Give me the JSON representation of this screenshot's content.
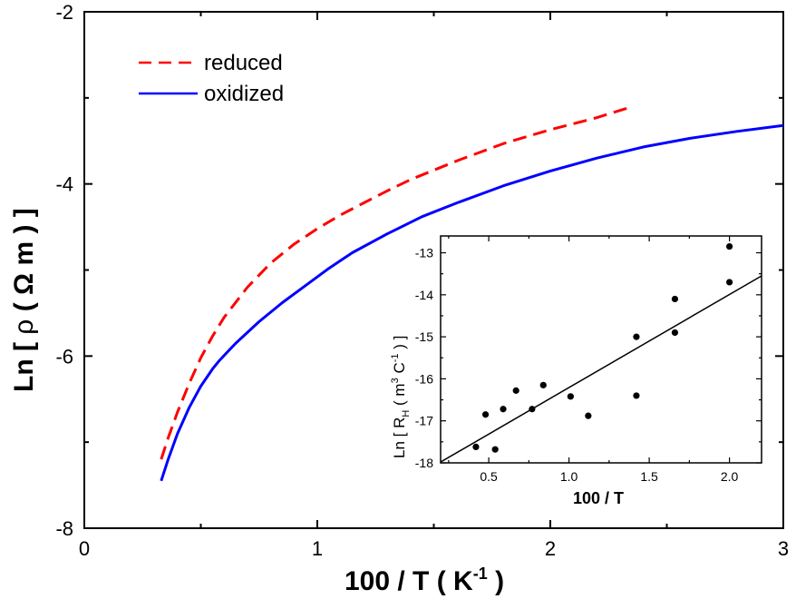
{
  "chart_data": [
    {
      "type": "line",
      "xlabel": "100 / T ( K",
      "xlabel_sup": "-1",
      "xlabel_end": " )",
      "ylabel_a": "Ln [ ",
      "ylabel_rho": "ρ",
      "ylabel_b": " ( Ω m ) ]",
      "xlim": [
        0,
        3
      ],
      "ylim": [
        -8,
        -2
      ],
      "xticks": [
        0,
        1,
        2,
        3
      ],
      "yticks": [
        -8,
        -6,
        -4,
        -2
      ],
      "xtick_labels": [
        "0",
        "1",
        "2",
        "3"
      ],
      "ytick_labels": [
        "-8",
        "-6",
        "-4",
        "-2"
      ],
      "legend_position": "top-left",
      "series": [
        {
          "name": "reduced",
          "color": "#ff0000",
          "style": "dashed",
          "x": [
            0.33,
            0.36,
            0.4,
            0.45,
            0.5,
            0.55,
            0.6,
            0.7,
            0.8,
            0.9,
            1.0,
            1.1,
            1.2,
            1.3,
            1.4,
            1.5,
            1.6,
            1.7,
            1.8,
            1.9,
            2.0,
            2.1,
            2.2,
            2.33
          ],
          "y": [
            -7.2,
            -6.95,
            -6.65,
            -6.32,
            -6.02,
            -5.77,
            -5.55,
            -5.2,
            -4.92,
            -4.7,
            -4.52,
            -4.36,
            -4.22,
            -4.08,
            -3.95,
            -3.84,
            -3.73,
            -3.63,
            -3.53,
            -3.45,
            -3.37,
            -3.3,
            -3.23,
            -3.12
          ]
        },
        {
          "name": "oxidized",
          "color": "#0000ff",
          "style": "solid",
          "x": [
            0.33,
            0.36,
            0.4,
            0.45,
            0.5,
            0.55,
            0.58,
            0.65,
            0.75,
            0.85,
            0.95,
            1.05,
            1.15,
            1.3,
            1.45,
            1.6,
            1.8,
            2.0,
            2.2,
            2.4,
            2.6,
            2.8,
            3.0
          ],
          "y": [
            -7.45,
            -7.2,
            -6.9,
            -6.6,
            -6.35,
            -6.15,
            -6.05,
            -5.85,
            -5.6,
            -5.38,
            -5.18,
            -4.98,
            -4.8,
            -4.58,
            -4.38,
            -4.22,
            -4.02,
            -3.85,
            -3.7,
            -3.57,
            -3.47,
            -3.39,
            -3.32
          ]
        }
      ]
    },
    {
      "type": "scatter",
      "xlabel": "100 / T",
      "ylabel_a": "Ln [ R",
      "ylabel_sub": "H",
      "ylabel_b": " ( m",
      "ylabel_sup1": "3",
      "ylabel_c": " C",
      "ylabel_sup2": "-1",
      "ylabel_d": " ) ]",
      "xlim": [
        0.2,
        2.2
      ],
      "ylim": [
        -18,
        -12.6
      ],
      "xticks": [
        0.5,
        1.0,
        1.5,
        2.0
      ],
      "yticks": [
        -18,
        -17,
        -16,
        -15,
        -14,
        -13
      ],
      "xtick_labels": [
        "0.5",
        "1.0",
        "1.5",
        "2.0"
      ],
      "ytick_labels": [
        "-18",
        "-17",
        "-16",
        "-15",
        "-14",
        "-13"
      ],
      "points": [
        {
          "x": 0.42,
          "y": -17.62
        },
        {
          "x": 0.48,
          "y": -16.85
        },
        {
          "x": 0.54,
          "y": -17.68
        },
        {
          "x": 0.59,
          "y": -16.72
        },
        {
          "x": 0.67,
          "y": -16.28
        },
        {
          "x": 0.77,
          "y": -16.72
        },
        {
          "x": 0.84,
          "y": -16.15
        },
        {
          "x": 1.01,
          "y": -16.42
        },
        {
          "x": 1.12,
          "y": -16.88
        },
        {
          "x": 1.42,
          "y": -15.0
        },
        {
          "x": 1.42,
          "y": -16.4
        },
        {
          "x": 1.66,
          "y": -14.1
        },
        {
          "x": 1.66,
          "y": -14.9
        },
        {
          "x": 2.0,
          "y": -12.85
        },
        {
          "x": 2.0,
          "y": -13.7
        }
      ],
      "fit_line": {
        "x": [
          0.2,
          2.2
        ],
        "y": [
          -17.98,
          -13.55
        ]
      }
    }
  ]
}
